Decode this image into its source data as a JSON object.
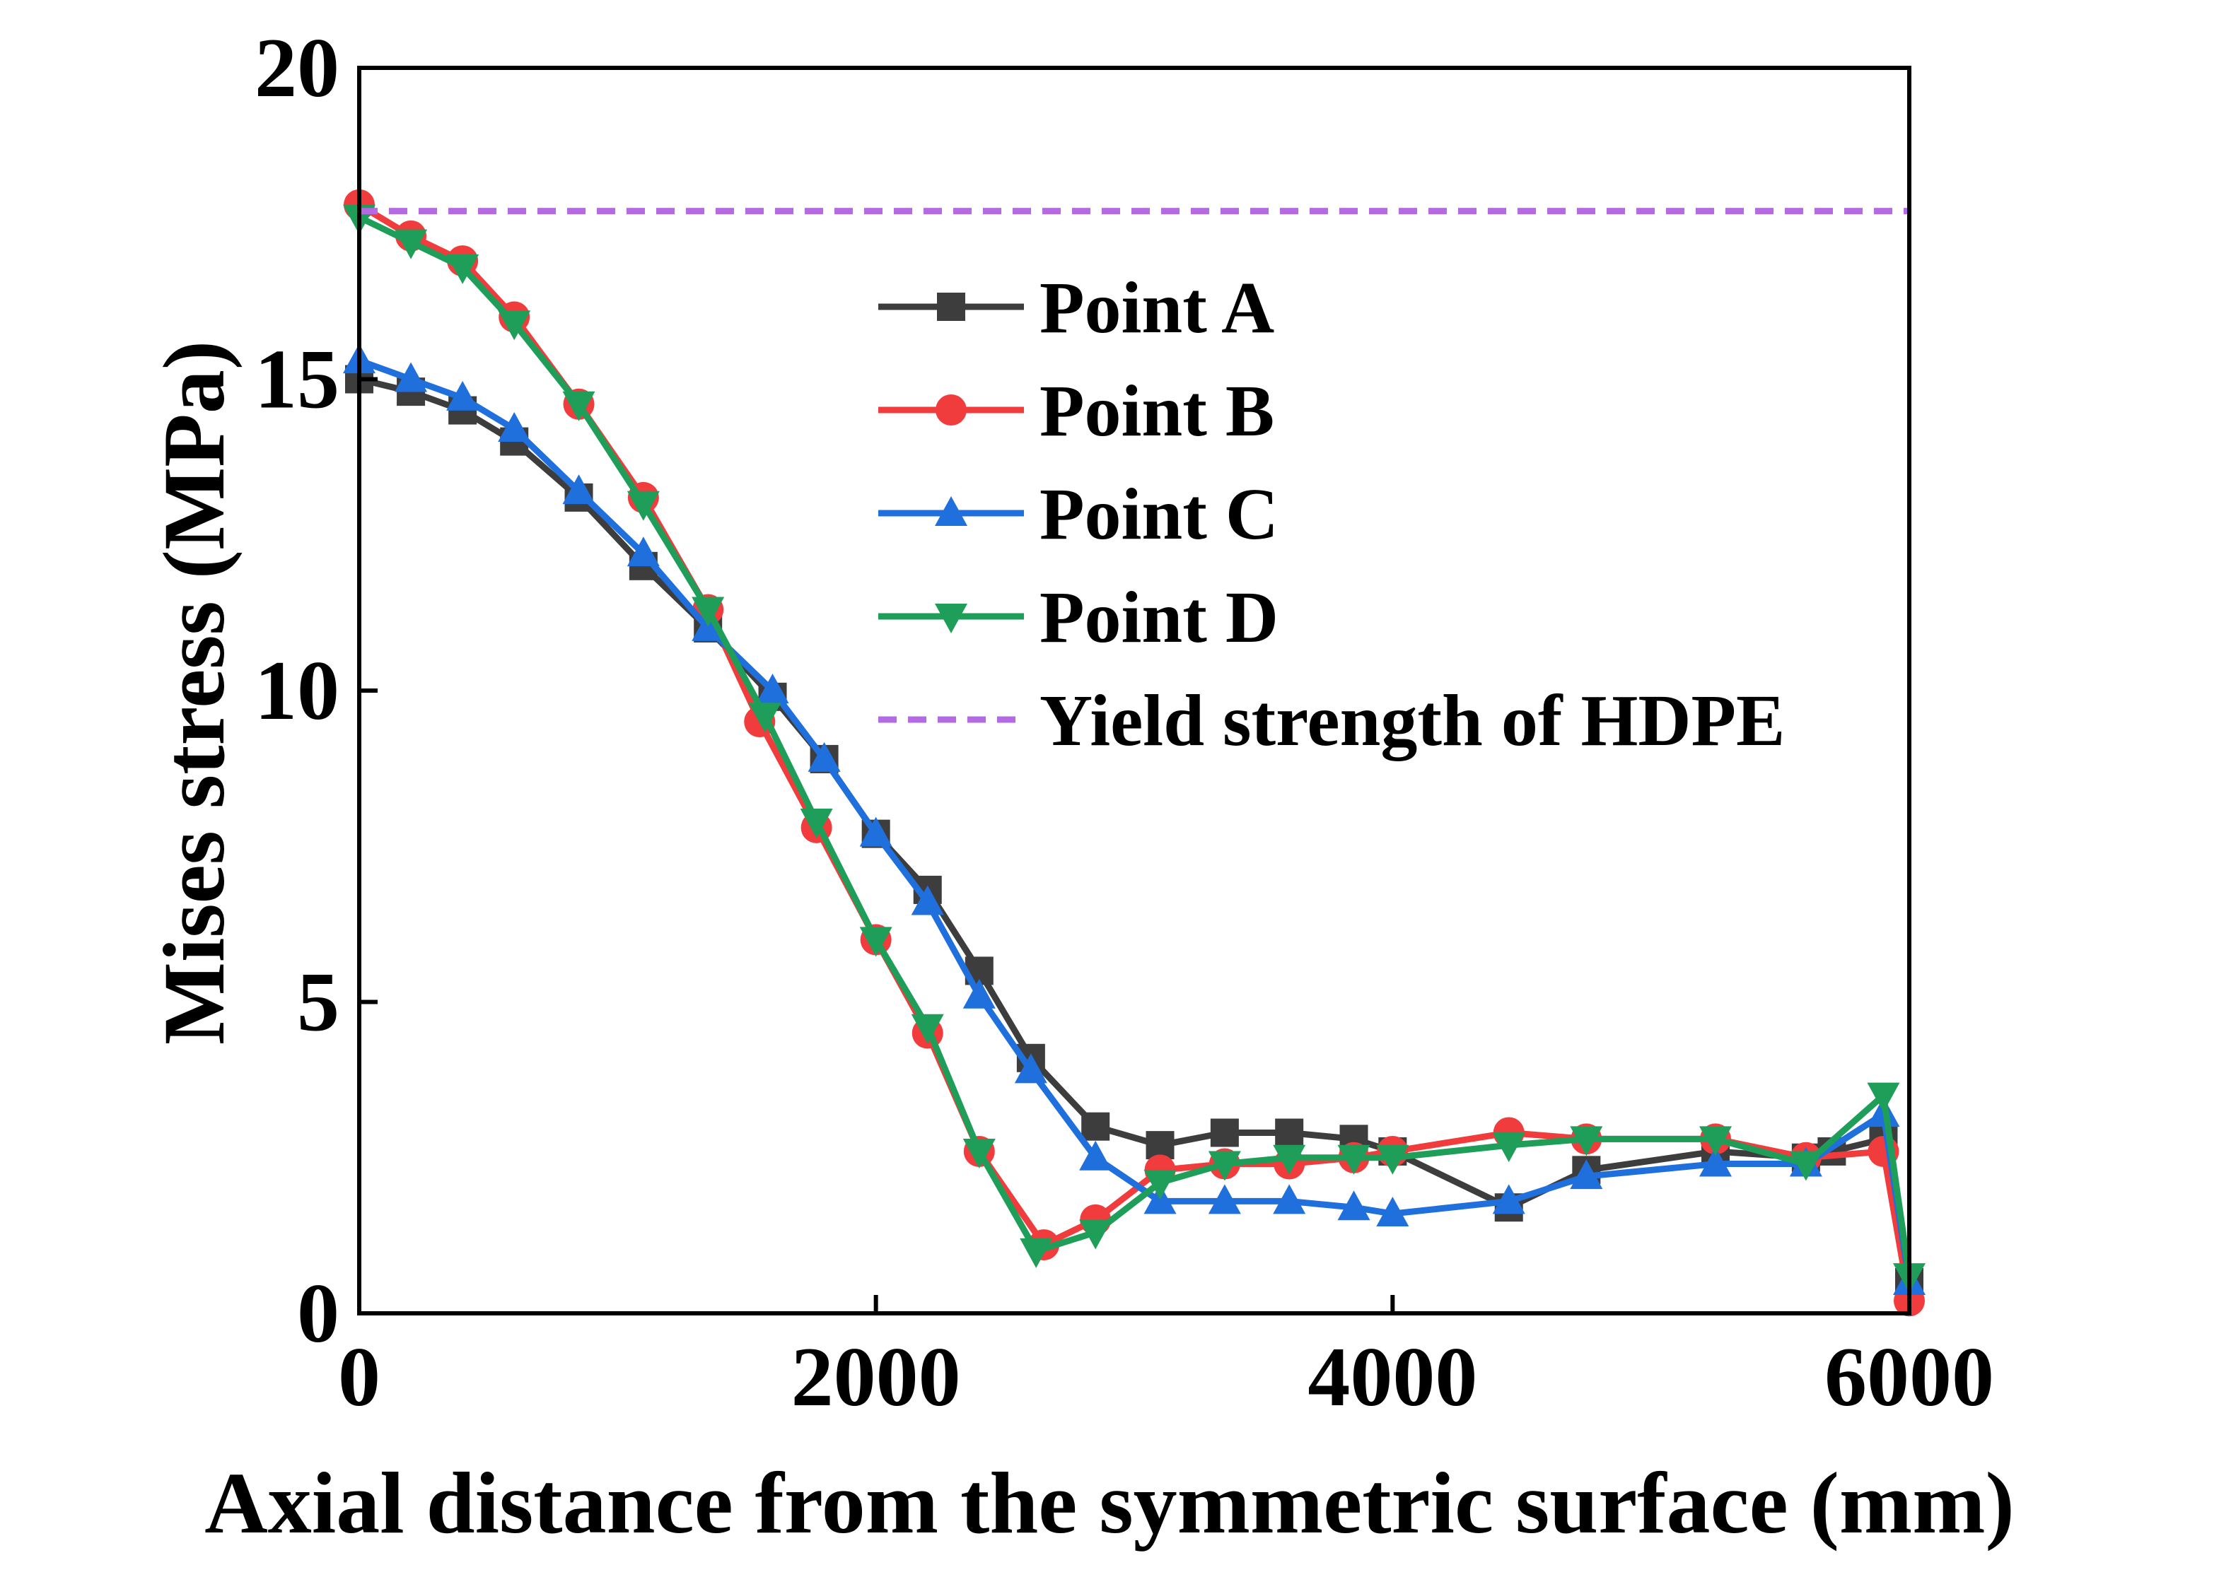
{
  "chart_data": {
    "type": "line",
    "xlabel": "Axial distance from the symmetric surface (mm)",
    "ylabel": "Mises stress (MPa)",
    "xlim": [
      0,
      6000
    ],
    "ylim": [
      0,
      20
    ],
    "xticks": [
      0,
      2000,
      4000,
      6000
    ],
    "yticks": [
      0,
      5,
      10,
      15,
      20
    ],
    "xtick_labels": [
      "0",
      "2000",
      "4000",
      "6000"
    ],
    "ytick_labels": [
      "0",
      "5",
      "10",
      "15",
      "20"
    ],
    "grid": false,
    "legend_position": "upper-right",
    "series": [
      {
        "name": "Point A",
        "color": "#3d3d3d",
        "marker": "square",
        "x": [
          0,
          200,
          400,
          600,
          850,
          1100,
          1350,
          1600,
          1800,
          2000,
          2200,
          2400,
          2600,
          2850,
          3100,
          3350,
          3600,
          3850,
          4000,
          4450,
          4750,
          5250,
          5600,
          5700,
          5900,
          6000
        ],
        "y": [
          15.0,
          14.8,
          14.5,
          14.0,
          13.1,
          12.0,
          11.0,
          9.9,
          8.9,
          7.7,
          6.8,
          5.5,
          4.1,
          3.0,
          2.7,
          2.9,
          2.9,
          2.8,
          2.6,
          1.7,
          2.3,
          2.6,
          2.5,
          2.6,
          2.8,
          0.5
        ]
      },
      {
        "name": "Point B",
        "color": "#f03c3c",
        "marker": "circle",
        "x": [
          0,
          200,
          400,
          600,
          850,
          1100,
          1350,
          1550,
          1770,
          2000,
          2200,
          2400,
          2650,
          2850,
          3100,
          3350,
          3600,
          3850,
          4000,
          4450,
          4750,
          5250,
          5600,
          5900,
          6000
        ],
        "y": [
          17.8,
          17.3,
          16.9,
          16.0,
          14.6,
          13.1,
          11.3,
          9.5,
          7.8,
          6.0,
          4.5,
          2.6,
          1.1,
          1.5,
          2.3,
          2.4,
          2.4,
          2.5,
          2.6,
          2.9,
          2.8,
          2.8,
          2.5,
          2.6,
          0.2
        ]
      },
      {
        "name": "Point C",
        "color": "#1f6fdc",
        "marker": "triangle-up",
        "x": [
          0,
          200,
          400,
          600,
          850,
          1100,
          1350,
          1600,
          1800,
          2000,
          2200,
          2400,
          2600,
          2850,
          3100,
          3350,
          3600,
          3850,
          4000,
          4450,
          4750,
          5250,
          5600,
          5900,
          6000
        ],
        "y": [
          15.3,
          15.0,
          14.7,
          14.2,
          13.2,
          12.2,
          11.0,
          10.0,
          8.9,
          7.7,
          6.6,
          5.1,
          3.9,
          2.5,
          1.8,
          1.8,
          1.8,
          1.7,
          1.6,
          1.8,
          2.2,
          2.4,
          2.4,
          3.2,
          0.5
        ]
      },
      {
        "name": "Point D",
        "color": "#1f9e5a",
        "marker": "triangle-down",
        "x": [
          0,
          200,
          400,
          600,
          850,
          1100,
          1350,
          1570,
          1770,
          2000,
          2200,
          2400,
          2620,
          2850,
          3100,
          3350,
          3600,
          3850,
          4000,
          4450,
          4750,
          5250,
          5600,
          5900,
          6000
        ],
        "y": [
          17.6,
          17.2,
          16.8,
          15.9,
          14.6,
          13.0,
          11.3,
          9.6,
          7.9,
          6.0,
          4.6,
          2.6,
          1.0,
          1.3,
          2.1,
          2.4,
          2.5,
          2.5,
          2.5,
          2.7,
          2.8,
          2.8,
          2.4,
          3.5,
          0.6
        ]
      },
      {
        "name": "Yield strength of HDPE",
        "color": "#b36ae2",
        "style": "dashed",
        "x": [
          0,
          6000
        ],
        "y": [
          17.7,
          17.7
        ]
      }
    ]
  }
}
